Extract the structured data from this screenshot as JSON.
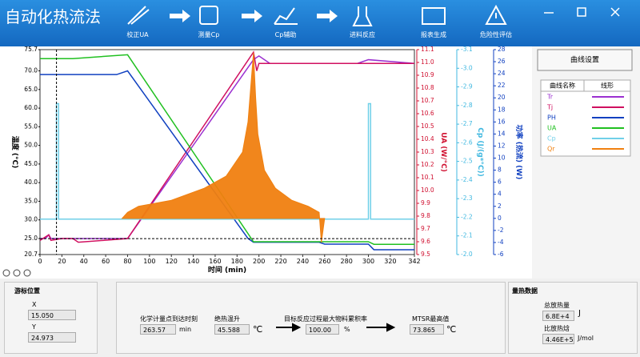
{
  "header": {
    "title": "自动化热流法",
    "toolbar": [
      "校正UA",
      "测量Cp",
      "Cp辅助",
      "进料反应",
      "报表生成",
      "危险性评估"
    ]
  },
  "chart_data": {
    "type": "line",
    "xlabel": "时间 (min)",
    "xlim": [
      0,
      342
    ],
    "xticks": [
      0,
      20,
      40,
      60,
      80,
      100,
      120,
      140,
      160,
      180,
      200,
      220,
      240,
      260,
      280,
      300,
      320,
      342
    ],
    "ylabel": "温度 (°C)",
    "ylim": [
      20.7,
      75.7
    ],
    "yticks": [
      20.7,
      {
        "value": 25,
        "label": "25.0"
      },
      {
        "value": 30,
        "label": "30.0"
      },
      {
        "value": 35,
        "label": "35.0"
      },
      {
        "value": 40,
        "label": "40.0"
      },
      {
        "value": 45,
        "label": "45.0"
      },
      {
        "value": 50,
        "label": "50.0"
      },
      {
        "value": 55,
        "label": "55.0"
      },
      {
        "value": 60,
        "label": "60.0"
      },
      {
        "value": 65,
        "label": "65.0"
      },
      {
        "value": 70,
        "label": "70.0"
      },
      75.7
    ],
    "y2label": "UA (W/°C)",
    "y2lim": [
      9.5,
      11.1
    ],
    "y2ticks": [
      9.5,
      9.6,
      9.7,
      9.8,
      9.9,
      {
        "value": 10,
        "label": "10.0"
      },
      10.1,
      10.2,
      10.3,
      10.4,
      10.5,
      10.6,
      10.7,
      10.8,
      10.9,
      {
        "value": 11,
        "label": "11.0"
      },
      11.1
    ],
    "y3label": "Cp (J/(g*°C))",
    "y3lim": [
      -2.0,
      -3.1
    ],
    "y3ticks": [
      {
        "value": -2,
        "label": "-2.0"
      },
      -2.1,
      -2.2,
      -2.3,
      -2.4,
      -2.5,
      -2.6,
      -2.7,
      -2.8,
      -2.9,
      {
        "value": -3,
        "label": "-3.0"
      },
      -3.1
    ],
    "y4label": "功率 (热流) (W)",
    "y4lim": [
      -6,
      28
    ],
    "y4ticks": [
      -6,
      -4,
      -2,
      0,
      2,
      4,
      6,
      8,
      10,
      12,
      14,
      16,
      18,
      20,
      22,
      24,
      26,
      28
    ],
    "series": [
      {
        "name": "Tr",
        "color": "#9b30d0",
        "axis": "y",
        "x": [
          0,
          5,
          8,
          10,
          15,
          30,
          80,
          195,
          200,
          210,
          260,
          290,
          300,
          342
        ],
        "values": [
          25,
          25,
          26,
          25,
          25,
          25,
          25,
          73,
          74,
          72,
          72,
          72,
          73,
          72
        ]
      },
      {
        "name": "Tj",
        "color": "#d01060",
        "axis": "y",
        "x": [
          0,
          8,
          10,
          20,
          30,
          35,
          80,
          195,
          198,
          200,
          210,
          342
        ],
        "values": [
          24.5,
          26,
          24.5,
          25,
          25,
          24,
          25,
          75,
          70,
          72,
          72,
          72
        ]
      },
      {
        "name": "PH",
        "color": "#1040c0",
        "axis": "y",
        "x": [
          0,
          70,
          80,
          190,
          195,
          255,
          260,
          300,
          305,
          342
        ],
        "values": [
          69,
          69,
          70,
          25,
          24,
          24,
          23.5,
          23.5,
          22,
          22
        ]
      },
      {
        "name": "UA",
        "color": "#20c020",
        "axis": "y2",
        "x": [
          0,
          30,
          80,
          195,
          200,
          300,
          305,
          342
        ],
        "values": [
          11.03,
          11.03,
          11.06,
          9.6,
          9.6,
          9.6,
          9.58,
          9.58
        ]
      },
      {
        "name": "Cp",
        "color": "#70d0e8",
        "axis": "y3",
        "x": [
          0,
          15,
          15,
          17,
          17,
          300,
          300,
          302,
          302,
          342
        ],
        "values": [
          -2.19,
          -2.19,
          -2.81,
          -2.81,
          -2.19,
          -2.19,
          -2.81,
          -2.81,
          -2.19,
          -2.19
        ]
      },
      {
        "name": "Qr",
        "color": "#f08010",
        "axis": "y4",
        "type": "area",
        "x": [
          75,
          80,
          90,
          120,
          150,
          170,
          185,
          190,
          195,
          197,
          199,
          205,
          215,
          230,
          245,
          255,
          257,
          260
        ],
        "values": [
          0,
          1,
          2,
          3,
          5,
          7,
          11,
          16,
          27.5,
          20,
          14,
          8,
          5,
          3,
          2,
          1,
          -4,
          0
        ]
      }
    ]
  },
  "settings": {
    "button": "曲线设置",
    "headers": [
      "曲线名称",
      "线形"
    ]
  },
  "cursor": {
    "title": "游标位置",
    "x_label": "X",
    "x": {
      "value": 15.05,
      "label": "15.050"
    },
    "y_label": "Y",
    "y": 24.973
  },
  "results": {
    "items": [
      {
        "label": "化学计量点到达时刻",
        "value": 263.57,
        "unit": "min"
      },
      {
        "label": "绝热温升",
        "value": 45.588,
        "unit": "℃"
      },
      {
        "label": "目标反应过程最大物料累积率",
        "value": {
          "value": 100,
          "label": "100.00"
        },
        "unit": "%"
      },
      {
        "label": "MTSR最高值",
        "value": 73.865,
        "unit": "℃"
      }
    ]
  },
  "calorimetry": {
    "title": "量热数据",
    "items": [
      {
        "label": "总放热量",
        "value": {
          "value": 68000,
          "label": "6.8E+4"
        },
        "unit": "J"
      },
      {
        "label": "比放热焓",
        "value": {
          "value": 446000,
          "label": "4.46E+5"
        },
        "unit": "J/mol"
      }
    ]
  }
}
